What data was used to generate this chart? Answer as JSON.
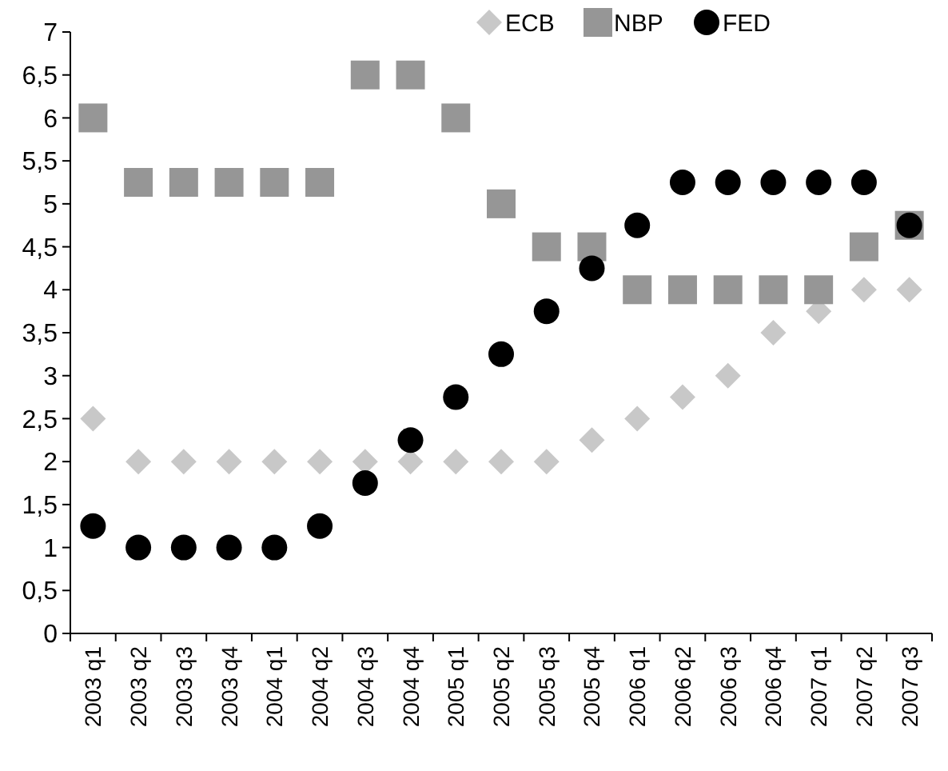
{
  "chart_data": {
    "type": "scatter",
    "categories": [
      "2003 q1",
      "2003 q2",
      "2003 q3",
      "2003 q4",
      "2004 q1",
      "2004 q2",
      "2004 q3",
      "2004 q4",
      "2005 q1",
      "2005 q2",
      "2005 q3",
      "2005 q4",
      "2006 q1",
      "2006 q2",
      "2006 q3",
      "2006 q4",
      "2007 q1",
      "2007 q2",
      "2007 q3"
    ],
    "series": [
      {
        "name": "ECB",
        "color": "#c8c8c8",
        "marker": "diamond",
        "values": [
          2.5,
          2,
          2,
          2,
          2,
          2,
          2,
          2,
          2,
          2,
          2,
          2.25,
          2.5,
          2.75,
          3,
          3.5,
          3.75,
          4,
          4
        ]
      },
      {
        "name": "NBP",
        "color": "#969696",
        "marker": "square",
        "values": [
          6,
          5.25,
          5.25,
          5.25,
          5.25,
          5.25,
          6.5,
          6.5,
          6,
          5,
          4.5,
          4.5,
          4,
          4,
          4,
          4,
          4,
          4.5,
          4.75
        ]
      },
      {
        "name": "FED",
        "color": "#000000",
        "marker": "circle",
        "values": [
          1.25,
          1,
          1,
          1,
          1,
          1.25,
          1.75,
          2.25,
          2.75,
          3.25,
          3.75,
          4.25,
          4.75,
          5.25,
          5.25,
          5.25,
          5.25,
          5.25,
          4.75
        ]
      }
    ],
    "ylim": [
      0,
      7
    ],
    "yticks": [
      0,
      {
        "value": 0.5,
        "label": "0,5"
      },
      1,
      {
        "value": 1.5,
        "label": "1,5"
      },
      2,
      {
        "value": 2.5,
        "label": "2,5"
      },
      3,
      {
        "value": 3.5,
        "label": "3,5"
      },
      4,
      {
        "value": 4.5,
        "label": "4,5"
      },
      5,
      {
        "value": 5.5,
        "label": "5,5"
      },
      6,
      {
        "value": 6.5,
        "label": "6,5"
      },
      7
    ],
    "grid": false,
    "legend": "top"
  }
}
